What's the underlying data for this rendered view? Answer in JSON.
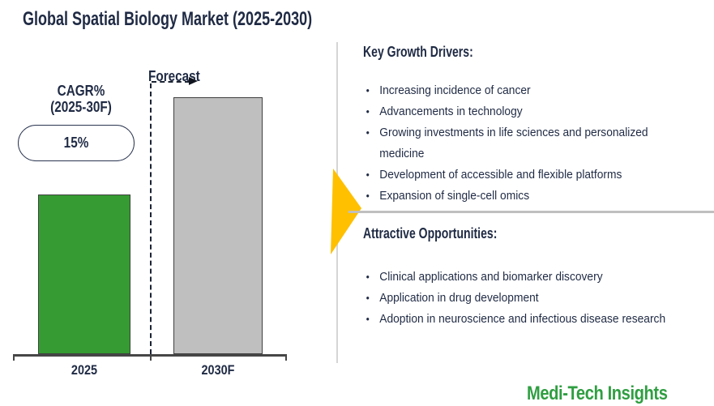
{
  "title": "Global Spatial Biology Market (2025-2030)",
  "chart": {
    "forecast_label": "Forecast",
    "cagr_line1": "CAGR%",
    "cagr_line2": "(2025-30F)",
    "cagr_value": "15%"
  },
  "chart_data": {
    "type": "bar",
    "title": "Global Spatial Biology Market (2025-2030)",
    "categories": [
      "2025",
      "2030F"
    ],
    "series": [
      {
        "name": "Market size (relative bar height; no value axis shown)",
        "values": [
          0.62,
          1.0
        ]
      }
    ],
    "bar_colors": [
      "#369B33",
      "#BFBFBF"
    ],
    "annotations": {
      "cagr_label": "CAGR% (2025-30F)",
      "cagr_value": "15%",
      "forecast": "Forecast"
    },
    "xlabel": "",
    "ylabel": "",
    "grid": false,
    "legend": false
  },
  "panel": {
    "sections": [
      {
        "heading": "Key Growth Drivers:",
        "bullets": [
          "Increasing incidence of cancer",
          "Advancements in technology",
          "Growing investments in life sciences and personalized medicine",
          "Development of accessible and flexible platforms",
          "Expansion of single-cell omics"
        ]
      },
      {
        "heading": "Attractive Opportunities:",
        "bullets": [
          "Clinical applications and biomarker discovery",
          "Application in drug development",
          "Adoption in neuroscience and infectious disease research"
        ]
      }
    ]
  },
  "branding": {
    "logo_text": "Medi-Tech Insights"
  },
  "colors": {
    "text_navy": "#1F2A44",
    "bar_green": "#369B33",
    "bar_gray": "#BFBFBF",
    "accent_gold": "#FFC000",
    "logo_green": "#2F9E41",
    "axis_gray": "#464646",
    "divider_gray": "#BFBFBF"
  }
}
